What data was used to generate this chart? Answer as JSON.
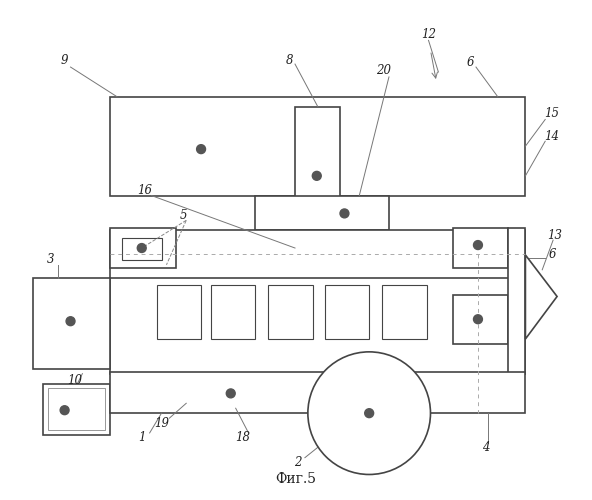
{
  "title": "Фиг.5",
  "bg_color": "#ffffff",
  "lc": "#444444",
  "lw": 1.2,
  "lw_thin": 0.8,
  "lw_leader": 0.7,
  "dc": "#555555",
  "dr": 0.007
}
